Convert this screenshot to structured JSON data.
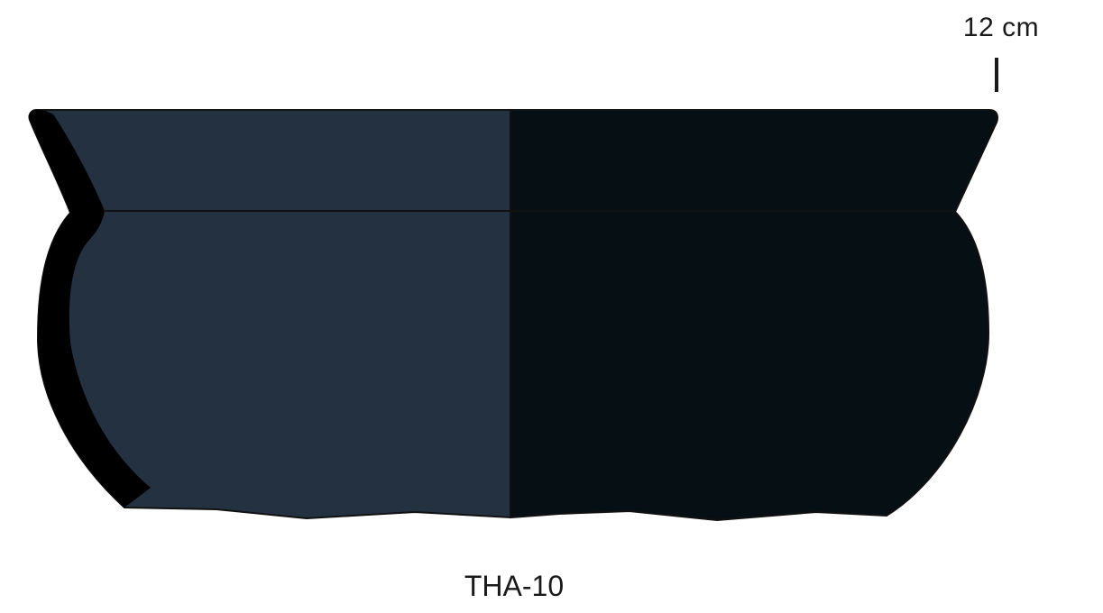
{
  "scale": {
    "label": "12 cm"
  },
  "vessel": {
    "id_label": "THA-10",
    "colors": {
      "exterior": "#233140",
      "interior": "#060f14",
      "section": "#000000",
      "outline": "#111111"
    }
  }
}
